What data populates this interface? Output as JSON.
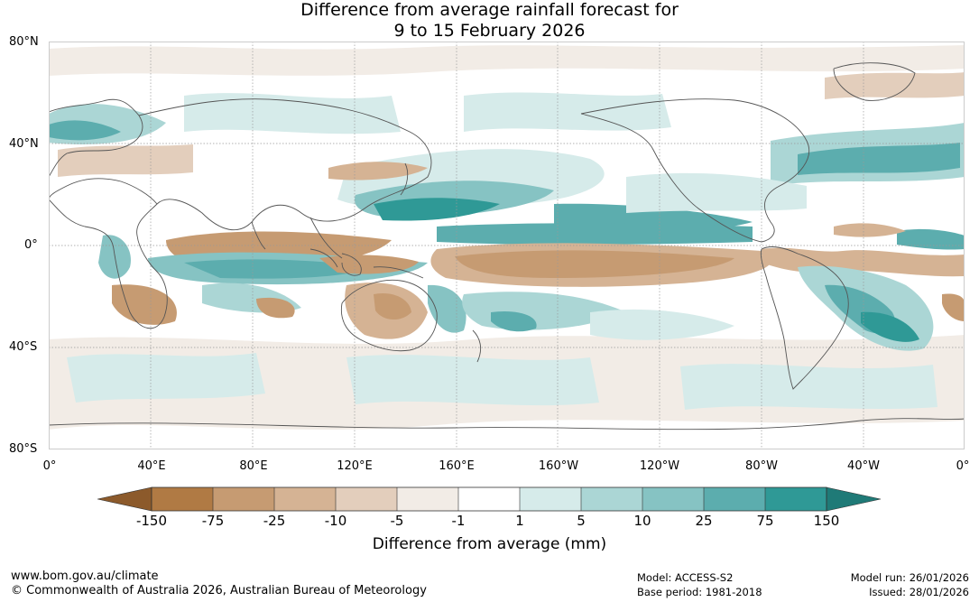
{
  "title": {
    "line1": "Difference from average rainfall forecast for",
    "line2": "9 to 15 February 2026"
  },
  "map": {
    "projection": "equirectangular, 0° to 360°E",
    "lat_labels": [
      "80°N",
      "40°N",
      "0°",
      "40°S",
      "80°S"
    ],
    "lon_labels": [
      "0°",
      "40°E",
      "80°E",
      "120°E",
      "160°E",
      "160°W",
      "120°W",
      "80°W",
      "40°W",
      "0°"
    ]
  },
  "legend": {
    "title": "Difference from average (mm)",
    "tick_labels": [
      "-150",
      "-75",
      "-25",
      "-10",
      "-5",
      "-1",
      "1",
      "5",
      "10",
      "25",
      "75",
      "150"
    ],
    "colors": [
      "#8c5a2b",
      "#b07a44",
      "#c69b72",
      "#d5b394",
      "#e3cebc",
      "#f2ece6",
      "#ffffff",
      "#d6ebea",
      "#abd6d5",
      "#86c3c3",
      "#5cadae",
      "#2f9996",
      "#1f7a77"
    ]
  },
  "colors": {
    "dry_strong": "#b07a44",
    "dry_mid": "#c69b72",
    "dry_light": "#d5b394",
    "dry_faint": "#f2ece6",
    "wet_faint": "#d6ebea",
    "wet_light": "#abd6d5",
    "wet_mid": "#86c3c3",
    "wet_strong": "#5cadae",
    "wet_max": "#2f9996",
    "coast": "#555555",
    "grid": "#999999"
  },
  "footer": {
    "url": "www.bom.gov.au/climate",
    "copyright": "© Commonwealth of Australia 2026, Australian Bureau of Meteorology",
    "model": "Model: ACCESS-S2",
    "base_period": "Base period: 1981-2018",
    "model_run": "Model run: 26/01/2026",
    "issued": "Issued: 28/01/2026"
  }
}
